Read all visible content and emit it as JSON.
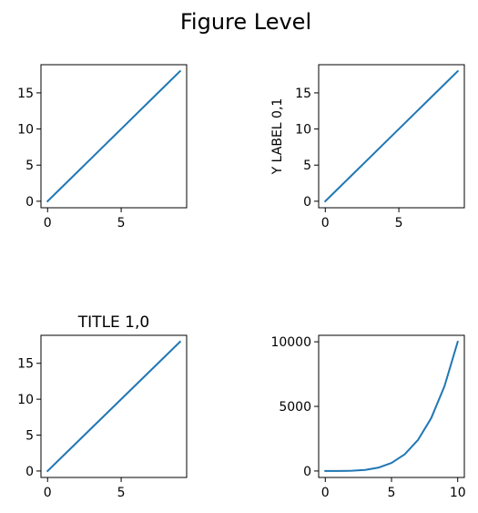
{
  "figure": {
    "title": "Figure Level"
  },
  "chart_data": [
    {
      "type": "line",
      "title": "",
      "xlabel": "",
      "ylabel": "",
      "xlim": [
        -0.45,
        9.45
      ],
      "ylim": [
        -0.9,
        18.9
      ],
      "xticks": [
        0,
        5
      ],
      "yticks": [
        0,
        5,
        10,
        15
      ],
      "series": [
        {
          "x": [
            0,
            1,
            2,
            3,
            4,
            5,
            6,
            7,
            8,
            9
          ],
          "values": [
            0,
            2,
            4,
            6,
            8,
            10,
            12,
            14,
            16,
            18
          ],
          "color": "#1f77b4"
        }
      ]
    },
    {
      "type": "line",
      "title": "",
      "xlabel": "",
      "ylabel": "Y LABEL 0,1",
      "xlim": [
        -0.45,
        9.45
      ],
      "ylim": [
        -0.9,
        18.9
      ],
      "xticks": [
        0,
        5
      ],
      "yticks": [
        0,
        5,
        10,
        15
      ],
      "series": [
        {
          "x": [
            0,
            1,
            2,
            3,
            4,
            5,
            6,
            7,
            8,
            9
          ],
          "values": [
            0,
            2,
            4,
            6,
            8,
            10,
            12,
            14,
            16,
            18
          ],
          "color": "#1f77b4"
        }
      ]
    },
    {
      "type": "line",
      "title": "TITLE 1,0",
      "xlabel": "",
      "ylabel": "",
      "xlim": [
        -0.45,
        9.45
      ],
      "ylim": [
        -0.9,
        18.9
      ],
      "xticks": [
        0,
        5
      ],
      "yticks": [
        0,
        5,
        10,
        15
      ],
      "series": [
        {
          "x": [
            0,
            1,
            2,
            3,
            4,
            5,
            6,
            7,
            8,
            9
          ],
          "values": [
            0,
            2,
            4,
            6,
            8,
            10,
            12,
            14,
            16,
            18
          ],
          "color": "#1f77b4"
        }
      ]
    },
    {
      "type": "line",
      "title": "",
      "xlabel": "",
      "ylabel": "",
      "xlim": [
        -0.5,
        10.5
      ],
      "ylim": [
        -500,
        10500
      ],
      "xticks": [
        0,
        5,
        10
      ],
      "yticks": [
        0,
        5000,
        10000
      ],
      "series": [
        {
          "x": [
            0,
            1,
            2,
            3,
            4,
            5,
            6,
            7,
            8,
            9,
            10
          ],
          "values": [
            0,
            1,
            16,
            81,
            256,
            625,
            1296,
            2401,
            4096,
            6561,
            10000
          ],
          "color": "#1f77b4"
        }
      ]
    }
  ]
}
